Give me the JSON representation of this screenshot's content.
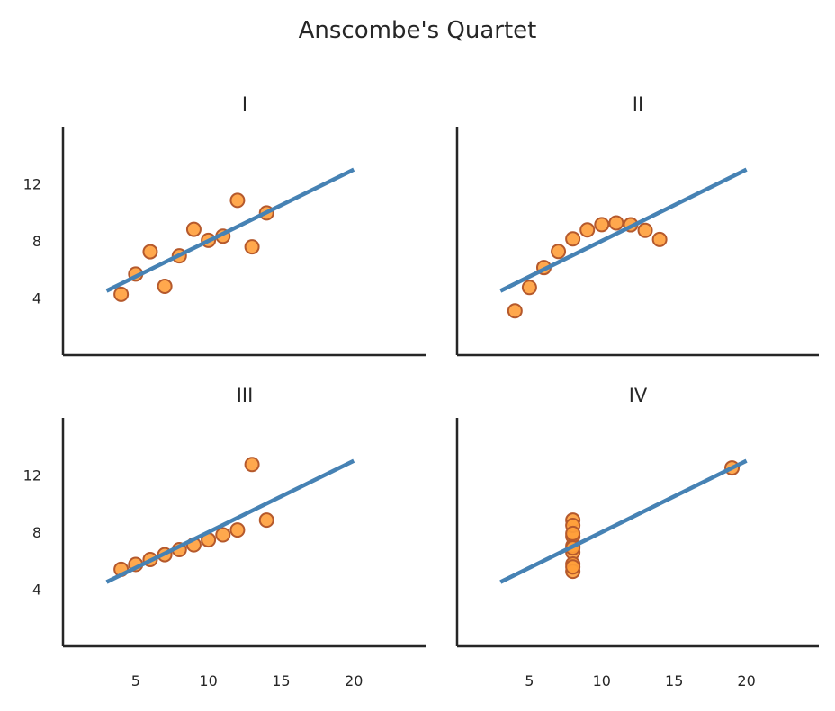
{
  "chart_data": {
    "type": "scatter",
    "title": "Anscombe's Quartet",
    "xlim": [
      0,
      25
    ],
    "ylim": [
      0,
      16
    ],
    "xticks": [
      5,
      10,
      15,
      20
    ],
    "yticks": [
      4,
      8,
      12
    ],
    "grid": false,
    "colors": {
      "point_fill": "#ff9f3a",
      "point_edge": "#b5592c",
      "line": "#4682b4",
      "axis": "#262626"
    },
    "panels": [
      {
        "title": "I",
        "points": [
          [
            10,
            8.04
          ],
          [
            8,
            6.95
          ],
          [
            13,
            7.58
          ],
          [
            9,
            8.81
          ],
          [
            11,
            8.33
          ],
          [
            14,
            9.96
          ],
          [
            6,
            7.24
          ],
          [
            4,
            4.26
          ],
          [
            12,
            10.84
          ],
          [
            7,
            4.82
          ],
          [
            5,
            5.68
          ]
        ],
        "fit": {
          "x": [
            3,
            20
          ],
          "y": [
            4.5,
            13
          ]
        }
      },
      {
        "title": "II",
        "points": [
          [
            10,
            9.14
          ],
          [
            8,
            8.14
          ],
          [
            13,
            8.74
          ],
          [
            9,
            8.77
          ],
          [
            11,
            9.26
          ],
          [
            14,
            8.1
          ],
          [
            6,
            6.13
          ],
          [
            4,
            3.1
          ],
          [
            12,
            9.13
          ],
          [
            7,
            7.26
          ],
          [
            5,
            4.74
          ]
        ],
        "fit": {
          "x": [
            3,
            20
          ],
          "y": [
            4.5,
            13
          ]
        }
      },
      {
        "title": "III",
        "points": [
          [
            10,
            7.46
          ],
          [
            8,
            6.77
          ],
          [
            13,
            12.74
          ],
          [
            9,
            7.11
          ],
          [
            11,
            7.81
          ],
          [
            14,
            8.84
          ],
          [
            6,
            6.08
          ],
          [
            4,
            5.39
          ],
          [
            12,
            8.15
          ],
          [
            7,
            6.42
          ],
          [
            5,
            5.73
          ]
        ],
        "fit": {
          "x": [
            3,
            20
          ],
          "y": [
            4.5,
            13
          ]
        }
      },
      {
        "title": "IV",
        "points": [
          [
            8,
            6.58
          ],
          [
            8,
            5.76
          ],
          [
            8,
            7.71
          ],
          [
            8,
            8.84
          ],
          [
            8,
            8.47
          ],
          [
            8,
            7.04
          ],
          [
            8,
            5.25
          ],
          [
            19,
            12.5
          ],
          [
            8,
            5.56
          ],
          [
            8,
            7.91
          ],
          [
            8,
            6.89
          ]
        ],
        "fit": {
          "x": [
            3,
            20
          ],
          "y": [
            4.5,
            13
          ]
        }
      }
    ]
  }
}
